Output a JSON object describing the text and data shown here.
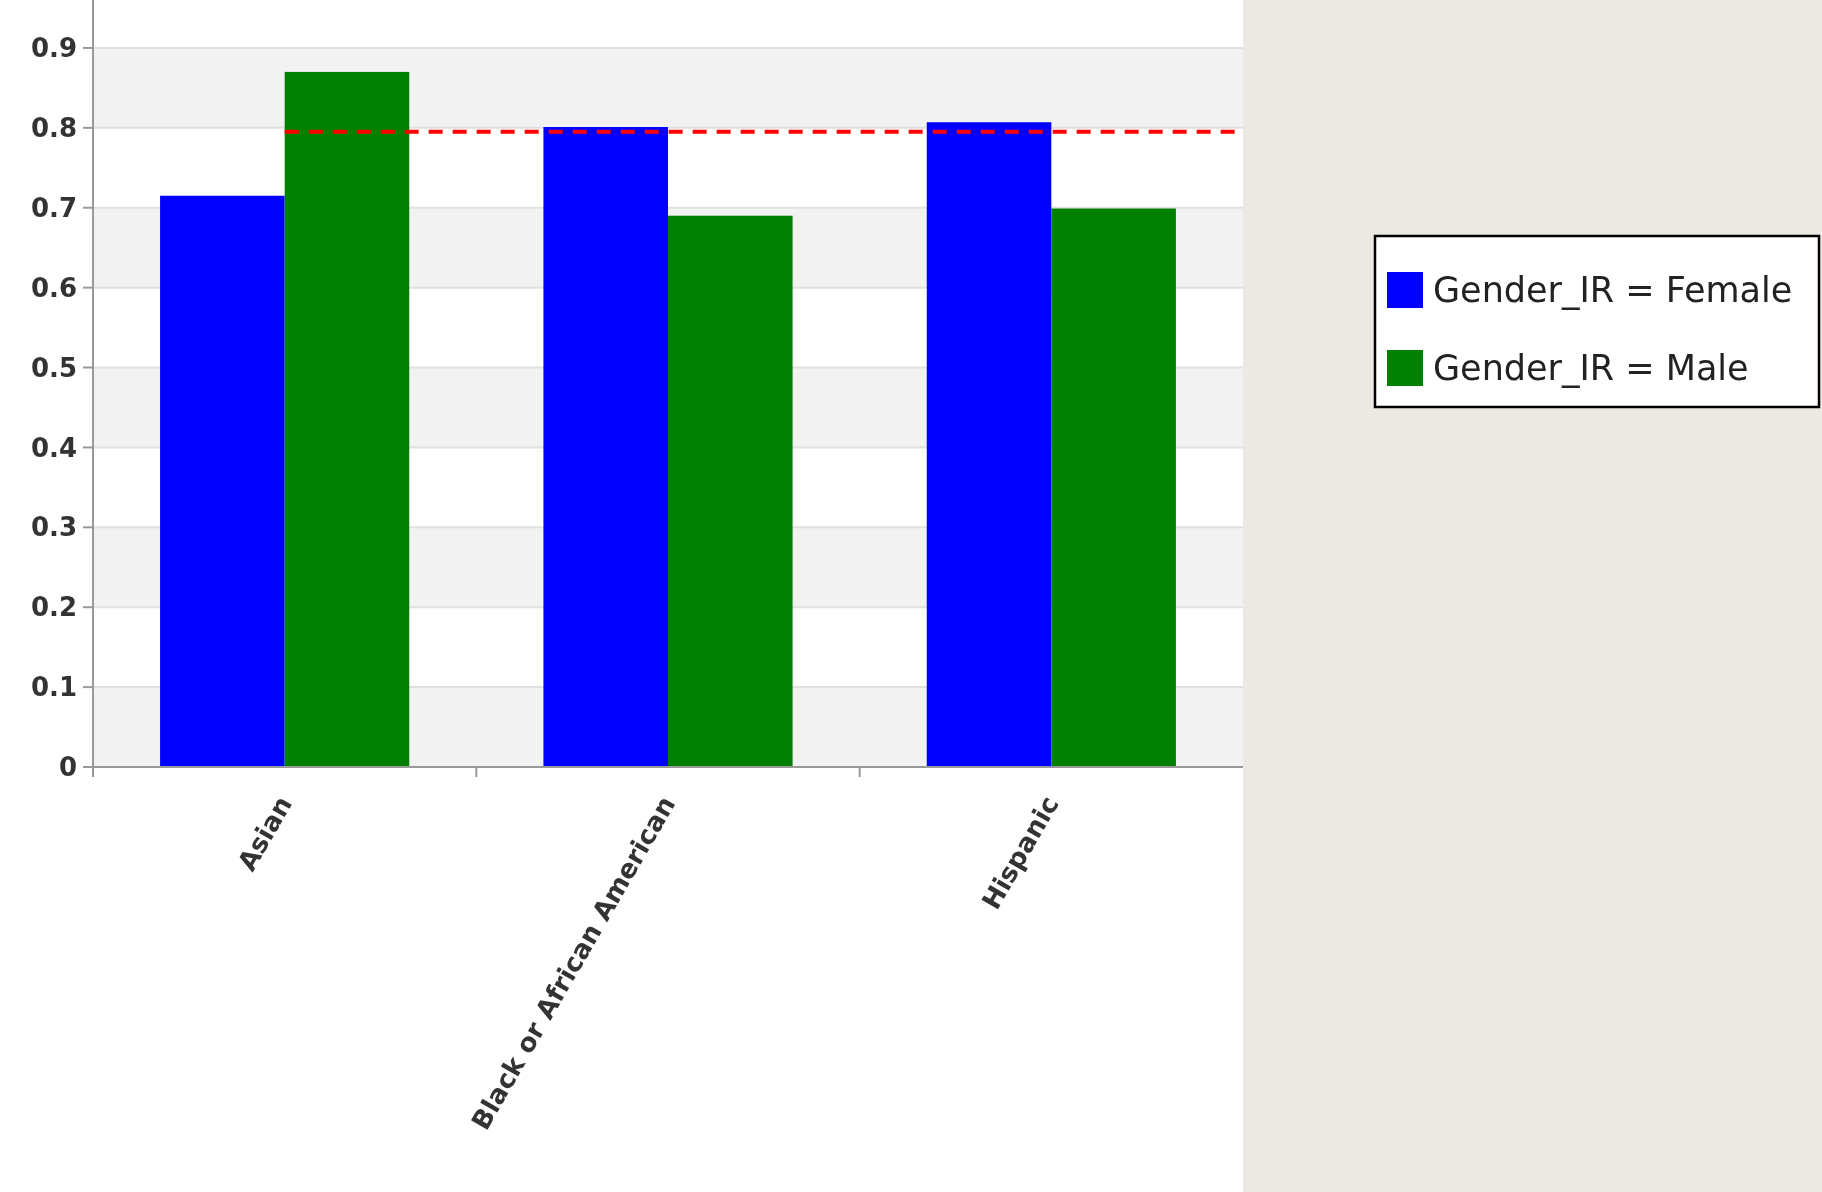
{
  "chart_data": {
    "type": "bar",
    "categories": [
      "Asian",
      "Black or African American",
      "Hispanic"
    ],
    "series": [
      {
        "name": "Gender_IR = Female",
        "color": "#0000ff",
        "values": [
          0.715,
          0.801,
          0.807
        ]
      },
      {
        "name": "Gender_IR = Male",
        "color": "#008000",
        "values": [
          0.87,
          0.69,
          0.699
        ]
      }
    ],
    "ylim": [
      0,
      0.96
    ],
    "yticks": [
      0,
      0.1,
      0.2,
      0.3,
      0.4,
      0.5,
      0.6,
      0.7,
      0.8,
      0.9
    ],
    "grid": "y",
    "legend": "right",
    "ref_lines": [
      {
        "axis": "y",
        "value": 0.795,
        "color": "#ff0000",
        "line_style": "dashed"
      }
    ]
  }
}
